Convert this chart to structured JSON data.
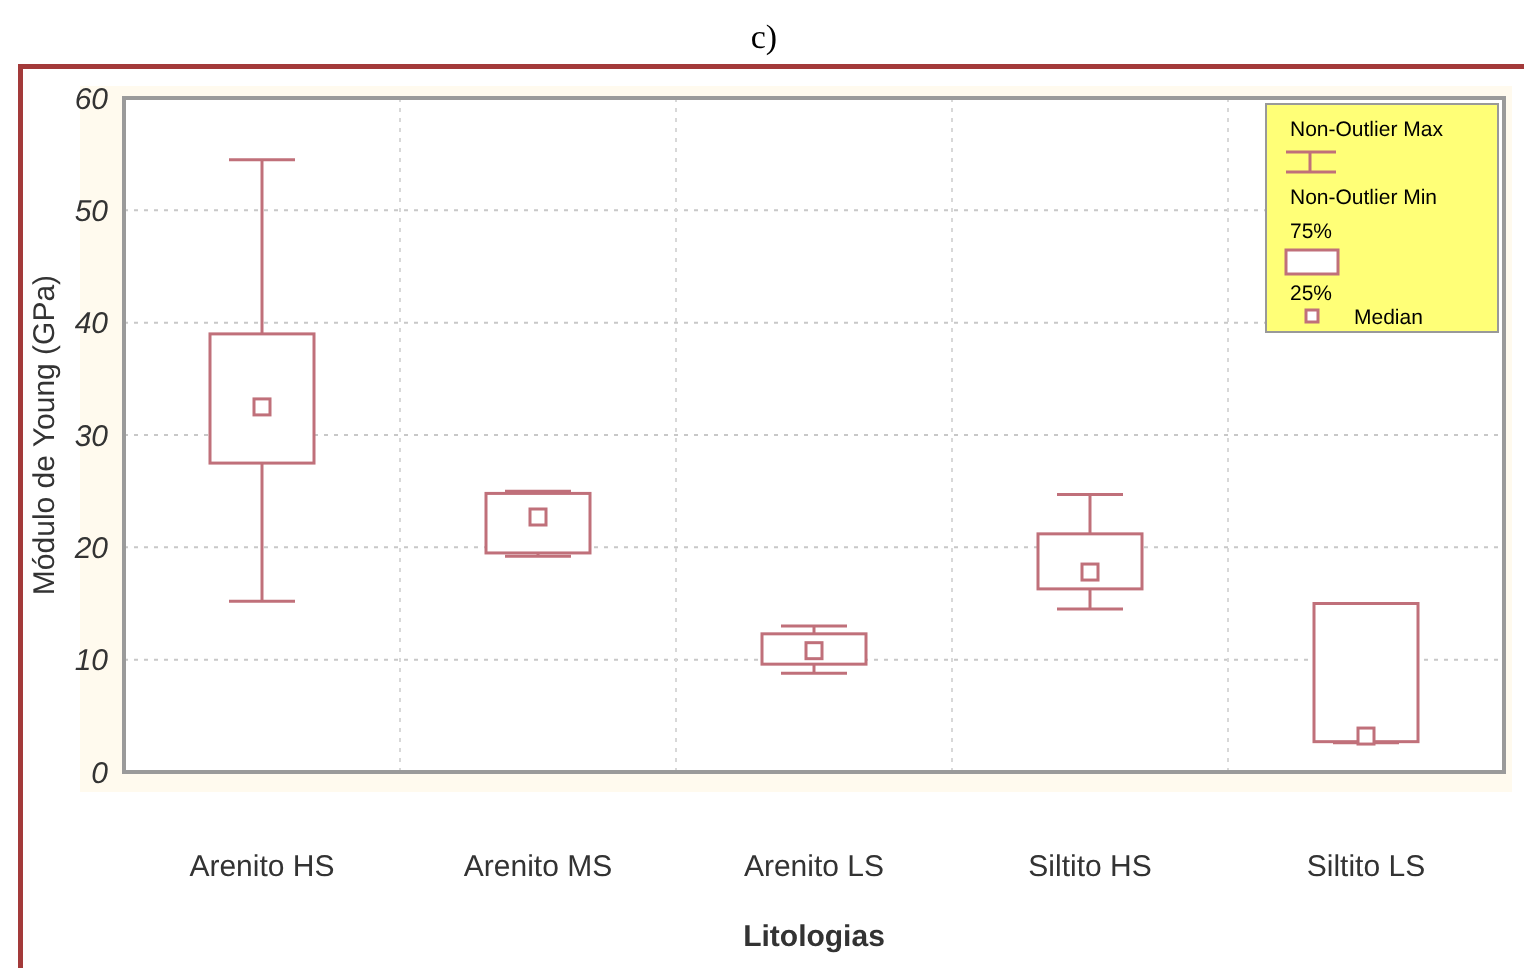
{
  "chart_data": {
    "type": "box",
    "title": "c)",
    "xlabel": "Litologias",
    "ylabel": "Módulo de Young (GPa)",
    "categories": [
      "Arenito HS",
      "Arenito MS",
      "Arenito LS",
      "Siltito HS",
      "Siltito LS"
    ],
    "boxes": [
      {
        "low": 15.2,
        "q1": 27.5,
        "median": 32.5,
        "q3": 39,
        "high": 54.5
      },
      {
        "low": 19.2,
        "q1": 19.5,
        "median": 22.7,
        "q3": 24.8,
        "high": 25
      },
      {
        "low": 8.8,
        "q1": 9.6,
        "median": 10.8,
        "q3": 12.3,
        "high": 13
      },
      {
        "low": 14.5,
        "q1": 16.3,
        "median": 17.8,
        "q3": 21.2,
        "high": 24.7
      },
      {
        "low": 2.6,
        "q1": 2.7,
        "median": 3.2,
        "q3": 15,
        "high": 15
      }
    ],
    "color": "#c0707a",
    "ylim": [
      0,
      60
    ],
    "yticks": [
      0,
      10,
      20,
      30,
      40,
      50,
      60
    ],
    "grid": true,
    "annotations": [
      "Non-Outlier Max",
      "Non-Outlier Min",
      "75%",
      "25%",
      "Median"
    ]
  }
}
